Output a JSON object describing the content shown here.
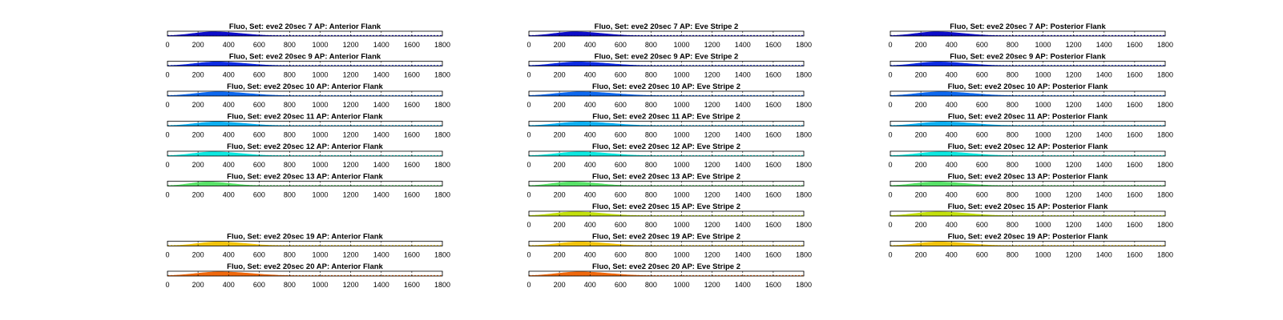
{
  "figure": {
    "xticks": [
      0,
      200,
      400,
      600,
      800,
      1000,
      1200,
      1400,
      1600,
      1800
    ],
    "xlim": [
      0,
      1800
    ]
  },
  "chart_data": [
    {
      "type": "area",
      "column": 0,
      "row": 0,
      "title": "Fluo, Set: eve2 20sec 7 AP: Anterior Flank",
      "color": "#0000c8",
      "peak_x": 300,
      "spread": 190,
      "xlim": [
        0,
        1800
      ],
      "xlabel": "",
      "ylabel": ""
    },
    {
      "type": "area",
      "column": 0,
      "row": 1,
      "title": "Fluo, Set: eve2 20sec 9 AP: Anterior Flank",
      "color": "#0020e0",
      "peak_x": 320,
      "spread": 200,
      "xlim": [
        0,
        1800
      ],
      "xlabel": "",
      "ylabel": ""
    },
    {
      "type": "area",
      "column": 0,
      "row": 2,
      "title": "Fluo, Set: eve2 20sec 10 AP: Anterior Flank",
      "color": "#0060f0",
      "peak_x": 330,
      "spread": 210,
      "xlim": [
        0,
        1800
      ],
      "xlabel": "",
      "ylabel": ""
    },
    {
      "type": "area",
      "column": 0,
      "row": 3,
      "title": "Fluo, Set: eve2 20sec 11 AP: Anterior Flank",
      "color": "#00aaf0",
      "peak_x": 320,
      "spread": 200,
      "xlim": [
        0,
        1800
      ],
      "xlabel": "",
      "ylabel": ""
    },
    {
      "type": "area",
      "column": 0,
      "row": 4,
      "title": "Fluo, Set: eve2 20sec 12 AP: Anterior Flank",
      "color": "#00e8e0",
      "peak_x": 300,
      "spread": 190,
      "xlim": [
        0,
        1800
      ],
      "xlabel": "",
      "ylabel": ""
    },
    {
      "type": "area",
      "column": 0,
      "row": 5,
      "title": "Fluo, Set: eve2 20sec 13 AP: Anterior Flank",
      "color": "#50e060",
      "peak_x": 260,
      "spread": 160,
      "xlim": [
        0,
        1800
      ],
      "xlabel": "",
      "ylabel": ""
    },
    {
      "type": "area",
      "column": 0,
      "row": 7,
      "title": "Fluo, Set: eve2 20sec 19 AP: Anterior Flank",
      "color": "#f0c000",
      "peak_x": 330,
      "spread": 190,
      "xlim": [
        0,
        1800
      ],
      "xlabel": "",
      "ylabel": ""
    },
    {
      "type": "area",
      "column": 0,
      "row": 8,
      "title": "Fluo, Set: eve2 20sec 20 AP: Anterior Flank",
      "color": "#f06000",
      "peak_x": 340,
      "spread": 220,
      "xlim": [
        0,
        1800
      ],
      "xlabel": "",
      "ylabel": ""
    },
    {
      "type": "area",
      "column": 1,
      "row": 0,
      "title": "Fluo, Set: eve2 20sec 7 AP: Eve Stripe 2",
      "color": "#0000c8",
      "peak_x": 300,
      "spread": 190,
      "xlim": [
        0,
        1800
      ],
      "xlabel": "",
      "ylabel": ""
    },
    {
      "type": "area",
      "column": 1,
      "row": 1,
      "title": "Fluo, Set: eve2 20sec 9 AP: Eve Stripe 2",
      "color": "#0020e0",
      "peak_x": 320,
      "spread": 210,
      "xlim": [
        0,
        1800
      ],
      "xlabel": "",
      "ylabel": ""
    },
    {
      "type": "area",
      "column": 1,
      "row": 2,
      "title": "Fluo, Set: eve2 20sec 10 AP: Eve Stripe 2",
      "color": "#0060f0",
      "peak_x": 340,
      "spread": 230,
      "xlim": [
        0,
        1800
      ],
      "xlabel": "",
      "ylabel": ""
    },
    {
      "type": "area",
      "column": 1,
      "row": 3,
      "title": "Fluo, Set: eve2 20sec 11 AP: Eve Stripe 2",
      "color": "#00aaf0",
      "peak_x": 340,
      "spread": 220,
      "xlim": [
        0,
        1800
      ],
      "xlabel": "",
      "ylabel": ""
    },
    {
      "type": "area",
      "column": 1,
      "row": 4,
      "title": "Fluo, Set: eve2 20sec 12 AP: Eve Stripe 2",
      "color": "#00e8e0",
      "peak_x": 330,
      "spread": 210,
      "xlim": [
        0,
        1800
      ],
      "xlabel": "",
      "ylabel": ""
    },
    {
      "type": "area",
      "column": 1,
      "row": 5,
      "title": "Fluo, Set: eve2 20sec 13 AP: Eve Stripe 2",
      "color": "#50e060",
      "peak_x": 280,
      "spread": 180,
      "xlim": [
        0,
        1800
      ],
      "xlabel": "",
      "ylabel": ""
    },
    {
      "type": "area",
      "column": 1,
      "row": 6,
      "title": "Fluo, Set: eve2 20sec 15 AP: Eve Stripe 2",
      "color": "#c0e000",
      "peak_x": 300,
      "spread": 200,
      "xlim": [
        0,
        1800
      ],
      "xlabel": "",
      "ylabel": ""
    },
    {
      "type": "area",
      "column": 1,
      "row": 7,
      "title": "Fluo, Set: eve2 20sec 19 AP: Eve Stripe 2",
      "color": "#f0c000",
      "peak_x": 330,
      "spread": 200,
      "xlim": [
        0,
        1800
      ],
      "xlabel": "",
      "ylabel": ""
    },
    {
      "type": "area",
      "column": 1,
      "row": 8,
      "title": "Fluo, Set: eve2 20sec 20 AP: Eve Stripe 2",
      "color": "#f06000",
      "peak_x": 330,
      "spread": 210,
      "xlim": [
        0,
        1800
      ],
      "xlabel": "",
      "ylabel": ""
    },
    {
      "type": "area",
      "column": 2,
      "row": 0,
      "title": "Fluo, Set: eve2 20sec 7 AP: Posterior Flank",
      "color": "#0000c8",
      "peak_x": 300,
      "spread": 190,
      "xlim": [
        0,
        1800
      ],
      "xlabel": "",
      "ylabel": ""
    },
    {
      "type": "area",
      "column": 2,
      "row": 1,
      "title": "Fluo, Set: eve2 20sec 9 AP: Posterior Flank",
      "color": "#0020e0",
      "peak_x": 310,
      "spread": 200,
      "xlim": [
        0,
        1800
      ],
      "xlabel": "",
      "ylabel": ""
    },
    {
      "type": "area",
      "column": 2,
      "row": 2,
      "title": "Fluo, Set: eve2 20sec 10 AP: Posterior Flank",
      "color": "#0060f0",
      "peak_x": 330,
      "spread": 220,
      "xlim": [
        0,
        1800
      ],
      "xlabel": "",
      "ylabel": ""
    },
    {
      "type": "area",
      "column": 2,
      "row": 3,
      "title": "Fluo, Set: eve2 20sec 11 AP: Posterior Flank",
      "color": "#00aaf0",
      "peak_x": 340,
      "spread": 220,
      "xlim": [
        0,
        1800
      ],
      "xlabel": "",
      "ylabel": ""
    },
    {
      "type": "area",
      "column": 2,
      "row": 4,
      "title": "Fluo, Set: eve2 20sec 12 AP: Posterior Flank",
      "color": "#00e8e0",
      "peak_x": 330,
      "spread": 210,
      "xlim": [
        0,
        1800
      ],
      "xlabel": "",
      "ylabel": ""
    },
    {
      "type": "area",
      "column": 2,
      "row": 5,
      "title": "Fluo, Set: eve2 20sec 13 AP: Posterior Flank",
      "color": "#50e060",
      "peak_x": 300,
      "spread": 200,
      "xlim": [
        0,
        1800
      ],
      "xlabel": "",
      "ylabel": ""
    },
    {
      "type": "area",
      "column": 2,
      "row": 6,
      "title": "Fluo, Set: eve2 20sec 15 AP: Posterior Flank",
      "color": "#c0e000",
      "peak_x": 310,
      "spread": 210,
      "xlim": [
        0,
        1800
      ],
      "xlabel": "",
      "ylabel": ""
    },
    {
      "type": "area",
      "column": 2,
      "row": 7,
      "title": "Fluo, Set: eve2 20sec 19 AP: Posterior Flank",
      "color": "#f0c000",
      "peak_x": 320,
      "spread": 200,
      "xlim": [
        0,
        1800
      ],
      "xlabel": "",
      "ylabel": ""
    }
  ]
}
